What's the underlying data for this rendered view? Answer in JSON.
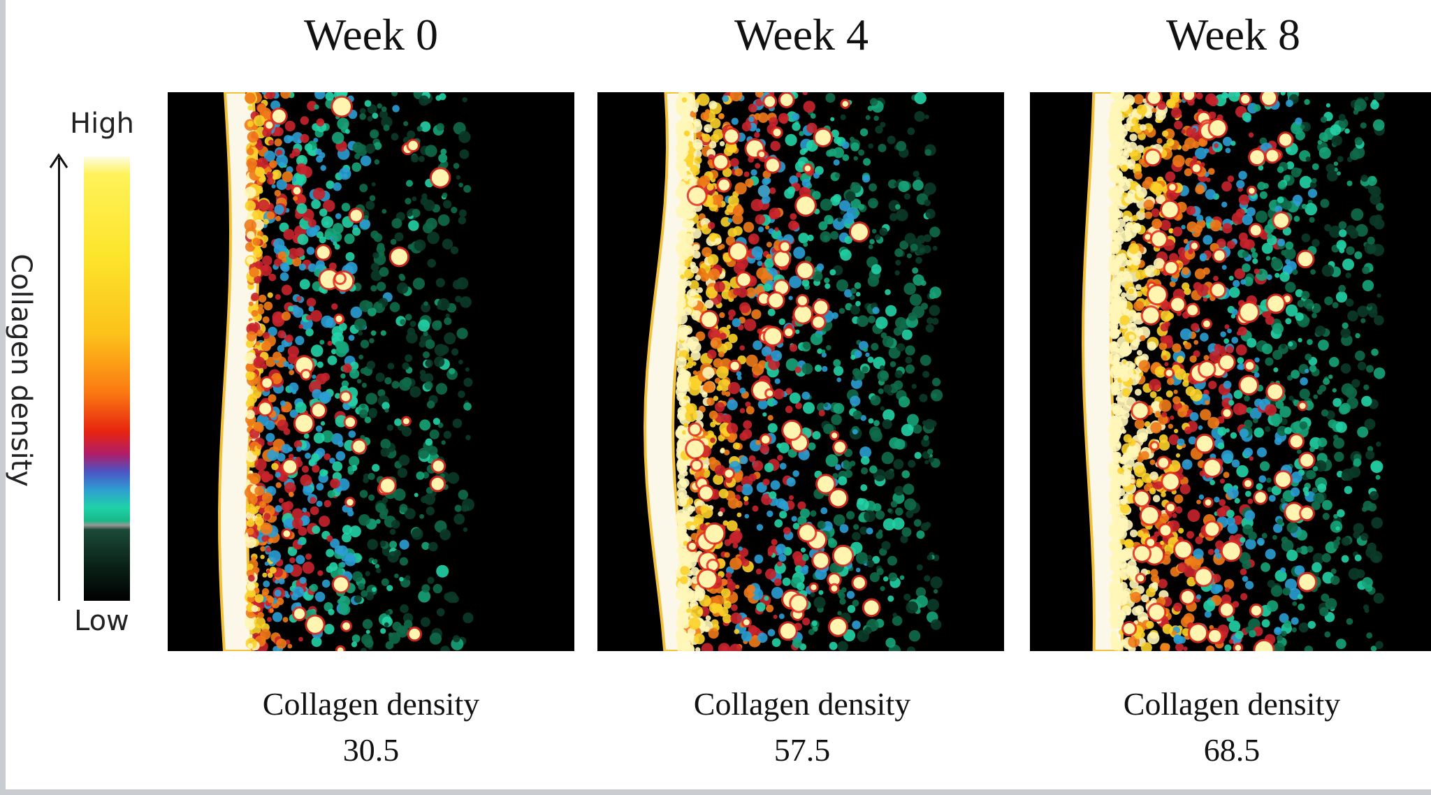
{
  "legend": {
    "high_label": "High",
    "low_label": "Low",
    "axis_label": "Collagen density"
  },
  "panels": [
    {
      "week_label": "Week 0",
      "caption_label": "Collagen density",
      "density": "30.5",
      "density_value": 30.5
    },
    {
      "week_label": "Week 4",
      "caption_label": "Collagen density",
      "density": "57.5",
      "density_value": 57.5
    },
    {
      "week_label": "Week 8",
      "caption_label": "Collagen density",
      "density": "68.5",
      "density_value": 68.5
    }
  ],
  "colors": {
    "background": "#ffffff",
    "frame_border": "#c9ccd1",
    "scale_high": "#fff25a",
    "scale_mid": "#e62410",
    "scale_low_teal": "#1fd2a8",
    "scale_low": "#000000"
  }
}
